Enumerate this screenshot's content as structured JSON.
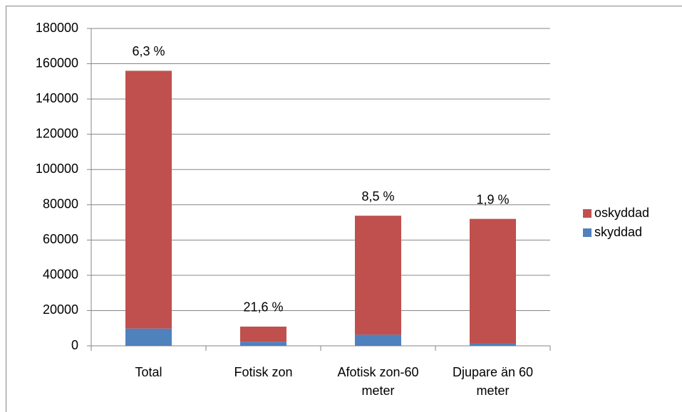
{
  "chart_data": {
    "type": "bar",
    "stacked": true,
    "categories": [
      "Total",
      "Fotisk zon",
      "Afotisk zon-60 meter",
      "Djupare än 60 meter"
    ],
    "series": [
      {
        "name": "skyddad",
        "color": "#4f81bd",
        "values": [
          9800,
          2350,
          6300,
          1400
        ]
      },
      {
        "name": "oskyddad",
        "color": "#c0504d",
        "values": [
          146200,
          8550,
          67500,
          70600
        ]
      }
    ],
    "annotations": [
      "6,3 %",
      "21,6 %",
      "8,5 %",
      "1,9 %"
    ],
    "ylim": [
      0,
      180000
    ],
    "yticks": [
      0,
      20000,
      40000,
      60000,
      80000,
      100000,
      120000,
      140000,
      160000,
      180000
    ],
    "grid": true,
    "legend": "right"
  }
}
